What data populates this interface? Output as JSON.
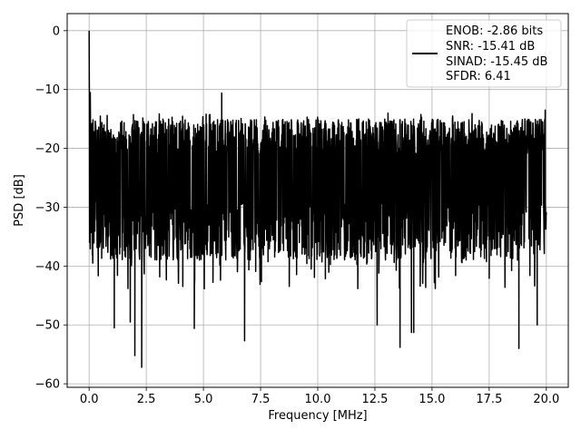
{
  "chart_data": {
    "type": "line",
    "title": "",
    "xlabel": "Frequency [MHz]",
    "ylabel": "PSD [dB]",
    "xlim": [
      -0.96,
      20.96
    ],
    "ylim": [
      -60.6,
      2.9
    ],
    "xticks": [
      0.0,
      2.5,
      5.0,
      7.5,
      10.0,
      12.5,
      15.0,
      17.5,
      20.0
    ],
    "xtick_labels": [
      "0.0",
      "2.5",
      "5.0",
      "7.5",
      "10.0",
      "12.5",
      "15.0",
      "17.5",
      "20.0"
    ],
    "yticks": [
      0,
      -10,
      -20,
      -30,
      -40,
      -50,
      -60
    ],
    "ytick_labels": [
      "0",
      "−10",
      "−20",
      "−30",
      "−40",
      "−50",
      "−60"
    ],
    "grid": true,
    "legend_position": "top-right",
    "series": [
      {
        "color": "#000000",
        "peak": {
          "x": 0.0,
          "y": 0.0
        },
        "noise_floor_upper": -18,
        "noise_floor_lower": -36,
        "notable_minima": [
          {
            "x": 1.1,
            "y": -50.5
          },
          {
            "x": 1.8,
            "y": -49.5
          },
          {
            "x": 2.0,
            "y": -55.2
          },
          {
            "x": 2.3,
            "y": -57.2
          },
          {
            "x": 4.6,
            "y": -50.6
          },
          {
            "x": 6.8,
            "y": -52.7
          },
          {
            "x": 12.6,
            "y": -50.0
          },
          {
            "x": 13.6,
            "y": -53.8
          },
          {
            "x": 14.1,
            "y": -51.3
          },
          {
            "x": 14.2,
            "y": -51.3
          },
          {
            "x": 18.8,
            "y": -54.0
          },
          {
            "x": 19.6,
            "y": -50.0
          }
        ],
        "notable_maxima": [
          {
            "x": 0.05,
            "y": -10.5
          },
          {
            "x": 5.8,
            "y": -10.6
          },
          {
            "x": 19.95,
            "y": -13.5
          }
        ]
      }
    ],
    "legend_lines": [
      "ENOB: -2.86 bits",
      "SNR: -15.41 dB",
      "SINAD: -15.45 dB",
      "SFDR: 6.41"
    ]
  }
}
